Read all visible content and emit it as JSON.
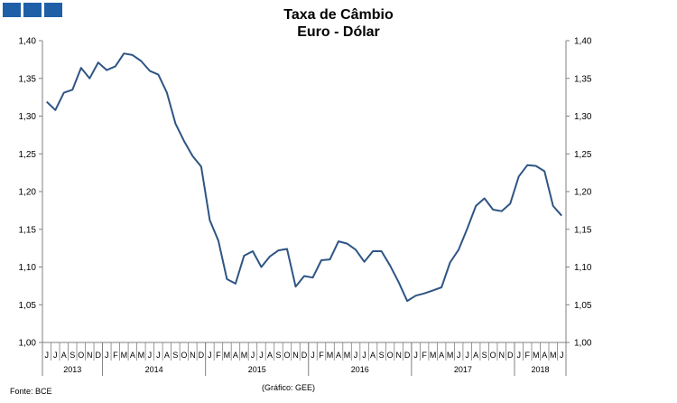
{
  "header": {
    "title": "Taxa de Câmbio",
    "subtitle": "Euro - Dólar",
    "logo_color": "#1f5fa8"
  },
  "footer": {
    "source": "Fonte: BCE",
    "credit": "(Gráfico: GEE)"
  },
  "chart_data": {
    "type": "line",
    "title": "Taxa de Câmbio",
    "subtitle": "Euro - Dólar",
    "xlabel": "",
    "ylabel": "",
    "ylim": [
      1.0,
      1.4
    ],
    "yticks": [
      "1,00",
      "1,05",
      "1,10",
      "1,15",
      "1,20",
      "1,25",
      "1,30",
      "1,35",
      "1,40"
    ],
    "y_axes": [
      "left",
      "right"
    ],
    "grid": false,
    "line_color": "#2f5584",
    "months": [
      "J",
      "J",
      "A",
      "S",
      "O",
      "N",
      "D",
      "J",
      "F",
      "M",
      "A",
      "M",
      "J",
      "J",
      "A",
      "S",
      "O",
      "N",
      "D",
      "J",
      "F",
      "M",
      "A",
      "M",
      "J",
      "J",
      "A",
      "S",
      "O",
      "N",
      "D",
      "J",
      "F",
      "M",
      "A",
      "M",
      "J",
      "J",
      "A",
      "S",
      "O",
      "N",
      "D",
      "J",
      "F",
      "M",
      "A",
      "M",
      "J",
      "J",
      "A",
      "S",
      "O",
      "N",
      "D",
      "J",
      "F",
      "M",
      "A",
      "M",
      "J"
    ],
    "years": [
      {
        "label": "2013",
        "start": 0,
        "count": 7
      },
      {
        "label": "2014",
        "start": 7,
        "count": 12
      },
      {
        "label": "2015",
        "start": 19,
        "count": 12
      },
      {
        "label": "2016",
        "start": 31,
        "count": 12
      },
      {
        "label": "2017",
        "start": 43,
        "count": 12
      },
      {
        "label": "2018",
        "start": 55,
        "count": 6
      }
    ],
    "series": [
      {
        "values": [
          1.319,
          1.308,
          1.331,
          1.335,
          1.364,
          1.35,
          1.371,
          1.361,
          1.366,
          1.383,
          1.381,
          1.373,
          1.36,
          1.355,
          1.331,
          1.29,
          1.267,
          1.247,
          1.233,
          1.162,
          1.135,
          1.084,
          1.078,
          1.115,
          1.121,
          1.1,
          1.114,
          1.122,
          1.124,
          1.074,
          1.088,
          1.086,
          1.109,
          1.11,
          1.134,
          1.131,
          1.123,
          1.107,
          1.121,
          1.121,
          1.102,
          1.08,
          1.055,
          1.062,
          1.065,
          1.069,
          1.073,
          1.106,
          1.123,
          1.151,
          1.181,
          1.191,
          1.176,
          1.174,
          1.184,
          1.22,
          1.235,
          1.234,
          1.227,
          1.181,
          1.168
        ]
      }
    ]
  }
}
